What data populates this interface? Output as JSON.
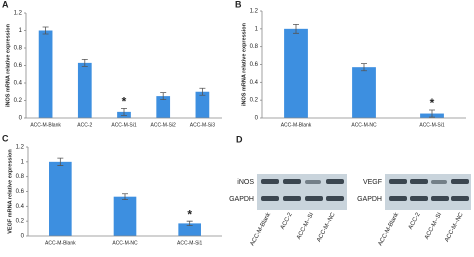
{
  "chart_data": [
    {
      "type": "bar",
      "label": "A",
      "y_label": "iNOS mRNA relative expression",
      "categories": [
        "ACC-M-Blank",
        "ACC-2",
        "ACC-M-Si1",
        "ACC-M-Si2",
        "ACC-M-Si3"
      ],
      "values": [
        1.0,
        0.63,
        0.07,
        0.25,
        0.3
      ],
      "errors": [
        0.04,
        0.04,
        0.04,
        0.04,
        0.04
      ],
      "color": "#3d8fe0",
      "ylim": [
        0,
        1.2
      ],
      "yticks": [
        0,
        0.2,
        0.4,
        0.6,
        0.8,
        1,
        1.2
      ],
      "annotations": [
        {
          "text": "*",
          "category": "ACC-M-Si1"
        }
      ]
    },
    {
      "type": "bar",
      "label": "B",
      "y_label": "iNOS mRNA relative expression",
      "categories": [
        "ACC-M-Blank",
        "ACC-M-NC",
        "ACC-M-Si1"
      ],
      "values": [
        1.0,
        0.57,
        0.05
      ],
      "errors": [
        0.05,
        0.04,
        0.04
      ],
      "color": "#3d8fe0",
      "ylim": [
        0,
        1.2
      ],
      "yticks": [
        0,
        0.2,
        0.4,
        0.6,
        0.8,
        1,
        1.2
      ],
      "annotations": [
        {
          "text": "*",
          "category": "ACC-M-Si1"
        }
      ]
    },
    {
      "type": "bar",
      "label": "C",
      "y_label": "VEGF mRNA relative expression",
      "categories": [
        "ACC-M-Blank",
        "ACC-M-NC",
        "ACC-M-Si1"
      ],
      "values": [
        1.0,
        0.53,
        0.17
      ],
      "errors": [
        0.05,
        0.04,
        0.03
      ],
      "color": "#3d8fe0",
      "ylim": [
        0,
        1.2
      ],
      "yticks": [
        0,
        0.2,
        0.4,
        0.6,
        0.8,
        1,
        1.2
      ],
      "annotations": [
        {
          "text": "*",
          "category": "ACC-M-Si1"
        }
      ]
    }
  ],
  "panel_d": {
    "label": "D",
    "blots": [
      {
        "rows": [
          "iNOS",
          "GAPDH"
        ],
        "lanes": [
          "ACC-M-Blank",
          "ACC-2",
          "ACC-M--SI",
          "ACC-M--NC"
        ]
      },
      {
        "rows": [
          "VEGF",
          "GAPDH"
        ],
        "lanes": [
          "ACC-M-Blank",
          "ACC-2",
          "ACC-M--SI",
          "ACC-M--NC"
        ]
      }
    ]
  }
}
